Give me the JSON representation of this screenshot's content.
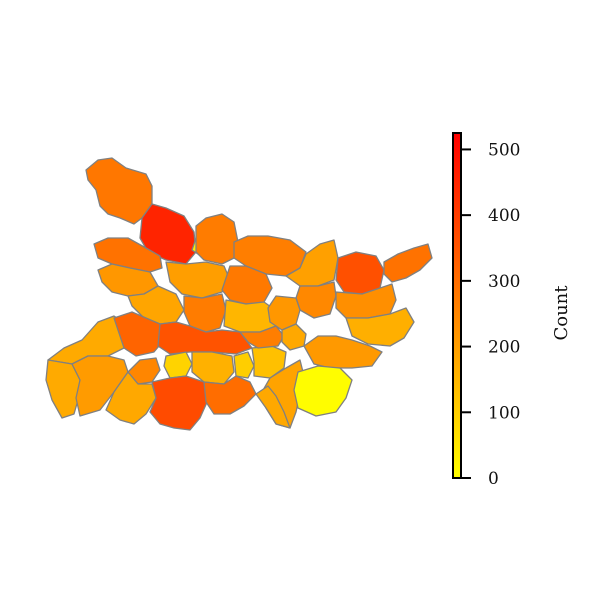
{
  "colorbar": {
    "label": "Count",
    "min": 0,
    "max": 525,
    "ticks": [
      "0",
      "100",
      "200",
      "300",
      "400",
      "500"
    ],
    "tick_values": [
      0,
      100,
      200,
      300,
      400,
      500
    ],
    "colormap": "autumn_r",
    "color_low": "#ffff00",
    "color_high": "#ff0000"
  },
  "chart_data": {
    "type": "choropleth",
    "value_label": "Count",
    "range": [
      0,
      525
    ],
    "colorbar_ticks": [
      0,
      100,
      200,
      300,
      400,
      500
    ],
    "regions": [
      {
        "value": 280
      },
      {
        "value": 450
      },
      {
        "value": 30
      },
      {
        "value": 270
      },
      {
        "value": 265
      },
      {
        "value": 290
      },
      {
        "value": 215
      },
      {
        "value": 185
      },
      {
        "value": 200
      },
      {
        "value": 270
      },
      {
        "value": 275
      },
      {
        "value": 150
      },
      {
        "value": 195
      },
      {
        "value": 360
      },
      {
        "value": 290
      },
      {
        "value": 245
      },
      {
        "value": 215
      },
      {
        "value": 230
      },
      {
        "value": 165
      },
      {
        "value": 175
      },
      {
        "value": 175
      },
      {
        "value": 205
      },
      {
        "value": 320
      },
      {
        "value": 355
      },
      {
        "value": 250
      },
      {
        "value": 90
      },
      {
        "value": 160
      },
      {
        "value": 180
      },
      {
        "value": 100
      },
      {
        "value": 130
      },
      {
        "value": 265
      },
      {
        "value": 180
      },
      {
        "value": 210
      },
      {
        "value": 190
      },
      {
        "value": 370
      },
      {
        "value": 300
      },
      {
        "value": 180
      },
      {
        "value": 5
      }
    ]
  }
}
